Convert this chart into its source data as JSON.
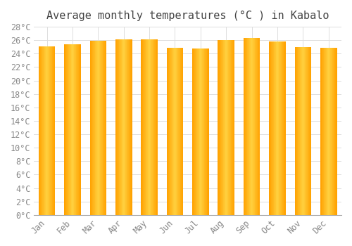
{
  "title": "Average monthly temperatures (°C ) in Kabalo",
  "months": [
    "Jan",
    "Feb",
    "Mar",
    "Apr",
    "May",
    "Jun",
    "Jul",
    "Aug",
    "Sep",
    "Oct",
    "Nov",
    "Dec"
  ],
  "values": [
    25.1,
    25.4,
    25.9,
    26.1,
    26.1,
    24.9,
    24.8,
    26.0,
    26.3,
    25.8,
    25.0,
    24.9
  ],
  "bar_color_center": "#FFD040",
  "bar_color_edge": "#FFA000",
  "background_color": "#FFFFFF",
  "grid_color": "#DDDDDD",
  "ylim": [
    0,
    28
  ],
  "ytick_step": 2,
  "title_fontsize": 11,
  "tick_fontsize": 8.5,
  "font_family": "monospace",
  "bar_width": 0.65
}
